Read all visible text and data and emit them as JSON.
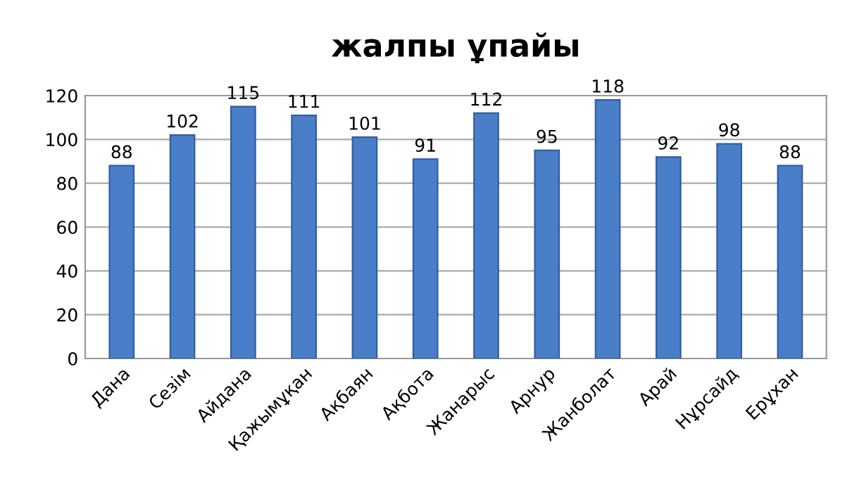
{
  "chart_data": {
    "type": "bar",
    "title": "жалпы ұпайы",
    "categories": [
      "Дана",
      "Сезім",
      "Айдана",
      "Қажымұқан",
      "Ақбаян",
      "Ақбота",
      "Жанарыс",
      "Арнур",
      "Жанболат",
      "Арай",
      "Нұрсайд",
      "Ерұхан"
    ],
    "values": [
      88,
      102,
      115,
      111,
      101,
      91,
      112,
      95,
      118,
      92,
      98,
      88
    ],
    "color": "#4a7ec8",
    "ylim": [
      0,
      120
    ],
    "yticks": [
      0,
      20,
      40,
      60,
      80,
      100,
      120
    ],
    "grid": "y",
    "data_labels": true
  }
}
